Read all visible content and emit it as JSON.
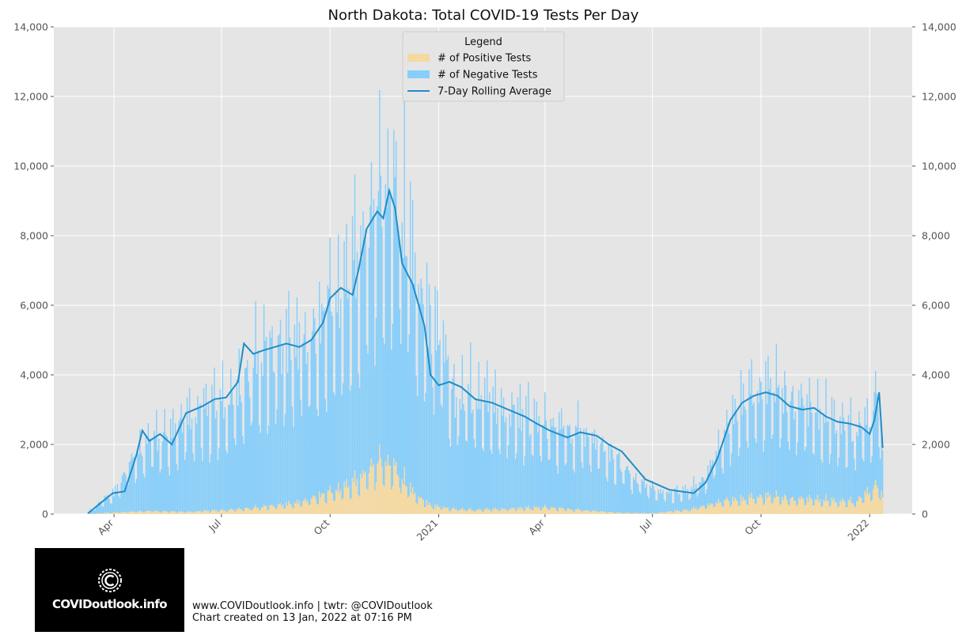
{
  "chart_data": {
    "type": "bar",
    "title": "North Dakota: Total COVID-19 Tests Per Day",
    "xlabel": "",
    "ylabel": "",
    "ylim": [
      0,
      14000
    ],
    "y_ticks": [
      0,
      2000,
      4000,
      6000,
      8000,
      10000,
      12000,
      14000
    ],
    "y_tick_labels": [
      "0",
      "2,000",
      "4,000",
      "6,000",
      "8,000",
      "10,000",
      "12,000",
      "14,000"
    ],
    "y_tick_labels_right": [
      "0",
      "2,000",
      "4,000",
      "6,000",
      "8,000",
      "10,000",
      "12,000",
      "14,000"
    ],
    "x_range": [
      "2020-02-10",
      "2022-02-06"
    ],
    "x_ticks": [
      "2020-04-01",
      "2020-07-01",
      "2020-10-01",
      "2021-01-01",
      "2021-04-01",
      "2021-07-01",
      "2021-10-01",
      "2022-01-01"
    ],
    "x_tick_labels": [
      "Apr",
      "Jul",
      "Oct",
      "2021",
      "Apr",
      "Jul",
      "Oct",
      "2022"
    ],
    "stacked": true,
    "grid": true,
    "background": "#e5e5e5",
    "legend": {
      "title": "Legend",
      "position": "top-center",
      "entries": [
        "# of Positive Tests",
        "# of Negative Tests",
        "7-Day Rolling Average"
      ]
    },
    "series": [
      {
        "name": "# of Positive Tests",
        "kind": "bar",
        "color": "#f5d9a0",
        "x": [
          "2020-03-10",
          "2020-04-01",
          "2020-05-01",
          "2020-06-01",
          "2020-07-01",
          "2020-08-01",
          "2020-09-01",
          "2020-10-01",
          "2020-10-20",
          "2020-11-05",
          "2020-11-15",
          "2020-11-25",
          "2020-12-10",
          "2020-12-25",
          "2021-01-10",
          "2021-02-01",
          "2021-03-01",
          "2021-04-01",
          "2021-05-01",
          "2021-06-01",
          "2021-07-01",
          "2021-08-01",
          "2021-09-01",
          "2021-10-01",
          "2021-11-01",
          "2021-12-01",
          "2021-12-20",
          "2022-01-01",
          "2022-01-07",
          "2022-01-12"
        ],
        "values": [
          5,
          40,
          80,
          60,
          100,
          180,
          300,
          600,
          800,
          1250,
          1500,
          1300,
          600,
          250,
          150,
          120,
          150,
          180,
          110,
          40,
          20,
          120,
          380,
          500,
          420,
          380,
          350,
          600,
          800,
          500
        ]
      },
      {
        "name": "# of Negative Tests",
        "kind": "bar",
        "color": "#87cefa",
        "x": [
          "2020-03-10",
          "2020-03-25",
          "2020-04-01",
          "2020-04-15",
          "2020-05-01",
          "2020-05-20",
          "2020-06-01",
          "2020-06-20",
          "2020-07-01",
          "2020-07-20",
          "2020-08-01",
          "2020-08-20",
          "2020-09-01",
          "2020-09-20",
          "2020-10-01",
          "2020-10-15",
          "2020-11-01",
          "2020-11-10",
          "2020-11-20",
          "2020-12-01",
          "2020-12-15",
          "2021-01-01",
          "2021-01-15",
          "2021-02-01",
          "2021-02-15",
          "2021-03-01",
          "2021-03-15",
          "2021-04-01",
          "2021-04-15",
          "2021-05-01",
          "2021-05-15",
          "2021-06-01",
          "2021-06-15",
          "2021-07-01",
          "2021-07-15",
          "2021-08-01",
          "2021-08-15",
          "2021-09-01",
          "2021-09-15",
          "2021-10-01",
          "2021-10-15",
          "2021-11-01",
          "2021-11-15",
          "2021-12-01",
          "2021-12-15",
          "2022-01-01",
          "2022-01-07",
          "2022-01-12"
        ],
        "values": [
          50,
          400,
          550,
          1300,
          1950,
          2100,
          2600,
          2750,
          2900,
          3400,
          4200,
          4300,
          4500,
          4600,
          5200,
          5400,
          6400,
          7100,
          7900,
          7500,
          5800,
          4800,
          3100,
          3300,
          2900,
          2800,
          2500,
          2200,
          2100,
          2150,
          1900,
          1500,
          1000,
          700,
          500,
          550,
          800,
          1900,
          2900,
          3000,
          2900,
          2700,
          2400,
          2300,
          2100,
          1800,
          2600,
          1400
        ]
      },
      {
        "name": "7-Day Rolling Average",
        "kind": "line",
        "color": "#1f8dc8",
        "x": [
          "2020-03-10",
          "2020-03-20",
          "2020-03-31",
          "2020-04-10",
          "2020-04-20",
          "2020-04-25",
          "2020-05-01",
          "2020-05-10",
          "2020-05-20",
          "2020-06-01",
          "2020-06-15",
          "2020-06-25",
          "2020-07-05",
          "2020-07-15",
          "2020-07-20",
          "2020-07-28",
          "2020-08-05",
          "2020-08-15",
          "2020-08-25",
          "2020-09-05",
          "2020-09-15",
          "2020-09-25",
          "2020-10-01",
          "2020-10-10",
          "2020-10-20",
          "2020-10-25",
          "2020-11-01",
          "2020-11-10",
          "2020-11-15",
          "2020-11-20",
          "2020-11-25",
          "2020-12-01",
          "2020-12-10",
          "2020-12-15",
          "2020-12-20",
          "2020-12-25",
          "2021-01-01",
          "2021-01-10",
          "2021-01-20",
          "2021-02-01",
          "2021-02-15",
          "2021-03-01",
          "2021-03-15",
          "2021-03-25",
          "2021-04-05",
          "2021-04-20",
          "2021-05-01",
          "2021-05-15",
          "2021-05-25",
          "2021-06-05",
          "2021-06-15",
          "2021-06-25",
          "2021-07-05",
          "2021-07-15",
          "2021-07-25",
          "2021-08-05",
          "2021-08-15",
          "2021-08-25",
          "2021-09-05",
          "2021-09-15",
          "2021-09-25",
          "2021-10-05",
          "2021-10-15",
          "2021-10-25",
          "2021-11-05",
          "2021-11-15",
          "2021-11-25",
          "2021-12-05",
          "2021-12-15",
          "2021-12-25",
          "2022-01-01",
          "2022-01-05",
          "2022-01-09",
          "2022-01-12"
        ],
        "values": [
          20,
          300,
          600,
          650,
          1700,
          2400,
          2100,
          2300,
          2000,
          2900,
          3100,
          3300,
          3350,
          3800,
          4900,
          4600,
          4700,
          4800,
          4900,
          4800,
          5000,
          5500,
          6200,
          6500,
          6300,
          7000,
          8200,
          8700,
          8500,
          9300,
          8800,
          7200,
          6600,
          6000,
          5400,
          4000,
          3700,
          3800,
          3650,
          3300,
          3200,
          3000,
          2800,
          2600,
          2400,
          2200,
          2350,
          2250,
          2000,
          1800,
          1400,
          1000,
          850,
          700,
          650,
          600,
          900,
          1600,
          2700,
          3200,
          3400,
          3500,
          3400,
          3100,
          3000,
          3050,
          2800,
          2650,
          2600,
          2500,
          2300,
          2700,
          3500,
          1900
        ]
      }
    ]
  },
  "logo": {
    "text": "COVIDoutlook.info"
  },
  "footer": {
    "line1": "www.COVIDoutlook.info | twtr: @COVIDoutlook",
    "line2": "Chart created on 13 Jan, 2022 at 07:16 PM"
  }
}
